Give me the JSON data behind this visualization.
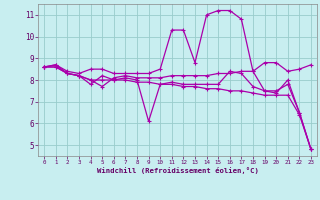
{
  "xlabel": "Windchill (Refroidissement éolien,°C)",
  "background_color": "#c8eef0",
  "line_color": "#aa00aa",
  "grid_color": "#99cccc",
  "xlim": [
    -0.5,
    23.5
  ],
  "ylim": [
    4.5,
    11.5
  ],
  "yticks": [
    5,
    6,
    7,
    8,
    9,
    10,
    11
  ],
  "xticks": [
    0,
    1,
    2,
    3,
    4,
    5,
    6,
    7,
    8,
    9,
    10,
    11,
    12,
    13,
    14,
    15,
    16,
    17,
    18,
    19,
    20,
    21,
    22,
    23
  ],
  "curve1_x": [
    0,
    1,
    2,
    3,
    4,
    5,
    6,
    7,
    8,
    9,
    10,
    11,
    12,
    13,
    14,
    15,
    16,
    17,
    18,
    19,
    20,
    21,
    22,
    23
  ],
  "curve1_y": [
    8.6,
    8.7,
    8.4,
    8.3,
    8.5,
    8.5,
    8.3,
    8.3,
    8.3,
    8.3,
    8.5,
    10.3,
    10.3,
    8.8,
    11.0,
    11.2,
    11.2,
    10.8,
    8.4,
    8.8,
    8.8,
    8.4,
    8.5,
    8.7
  ],
  "curve2_x": [
    0,
    1,
    2,
    3,
    4,
    5,
    6,
    7,
    8,
    9,
    10,
    11,
    12,
    13,
    14,
    15,
    16,
    17,
    18,
    19,
    20,
    21,
    22,
    23
  ],
  "curve2_y": [
    8.6,
    8.7,
    8.3,
    8.2,
    8.0,
    7.7,
    8.1,
    8.2,
    8.1,
    8.1,
    8.1,
    8.2,
    8.2,
    8.2,
    8.2,
    8.3,
    8.3,
    8.4,
    8.4,
    7.5,
    7.5,
    7.8,
    6.5,
    4.8
  ],
  "curve3_x": [
    0,
    1,
    2,
    3,
    4,
    5,
    6,
    7,
    8,
    9,
    10,
    11,
    12,
    13,
    14,
    15,
    16,
    17,
    18,
    19,
    20,
    21,
    22,
    23
  ],
  "curve3_y": [
    8.6,
    8.6,
    8.3,
    8.2,
    7.8,
    8.2,
    8.0,
    8.1,
    8.0,
    6.1,
    7.8,
    7.9,
    7.8,
    7.8,
    7.8,
    7.8,
    8.4,
    8.3,
    7.7,
    7.5,
    7.4,
    8.0,
    6.5,
    4.8
  ],
  "curve4_x": [
    0,
    1,
    2,
    3,
    4,
    5,
    6,
    7,
    8,
    9,
    10,
    11,
    12,
    13,
    14,
    15,
    16,
    17,
    18,
    19,
    20,
    21,
    22,
    23
  ],
  "curve4_y": [
    8.6,
    8.6,
    8.3,
    8.2,
    8.0,
    8.0,
    8.0,
    8.0,
    7.9,
    7.9,
    7.8,
    7.8,
    7.7,
    7.7,
    7.6,
    7.6,
    7.5,
    7.5,
    7.4,
    7.3,
    7.3,
    7.3,
    6.4,
    4.8
  ]
}
